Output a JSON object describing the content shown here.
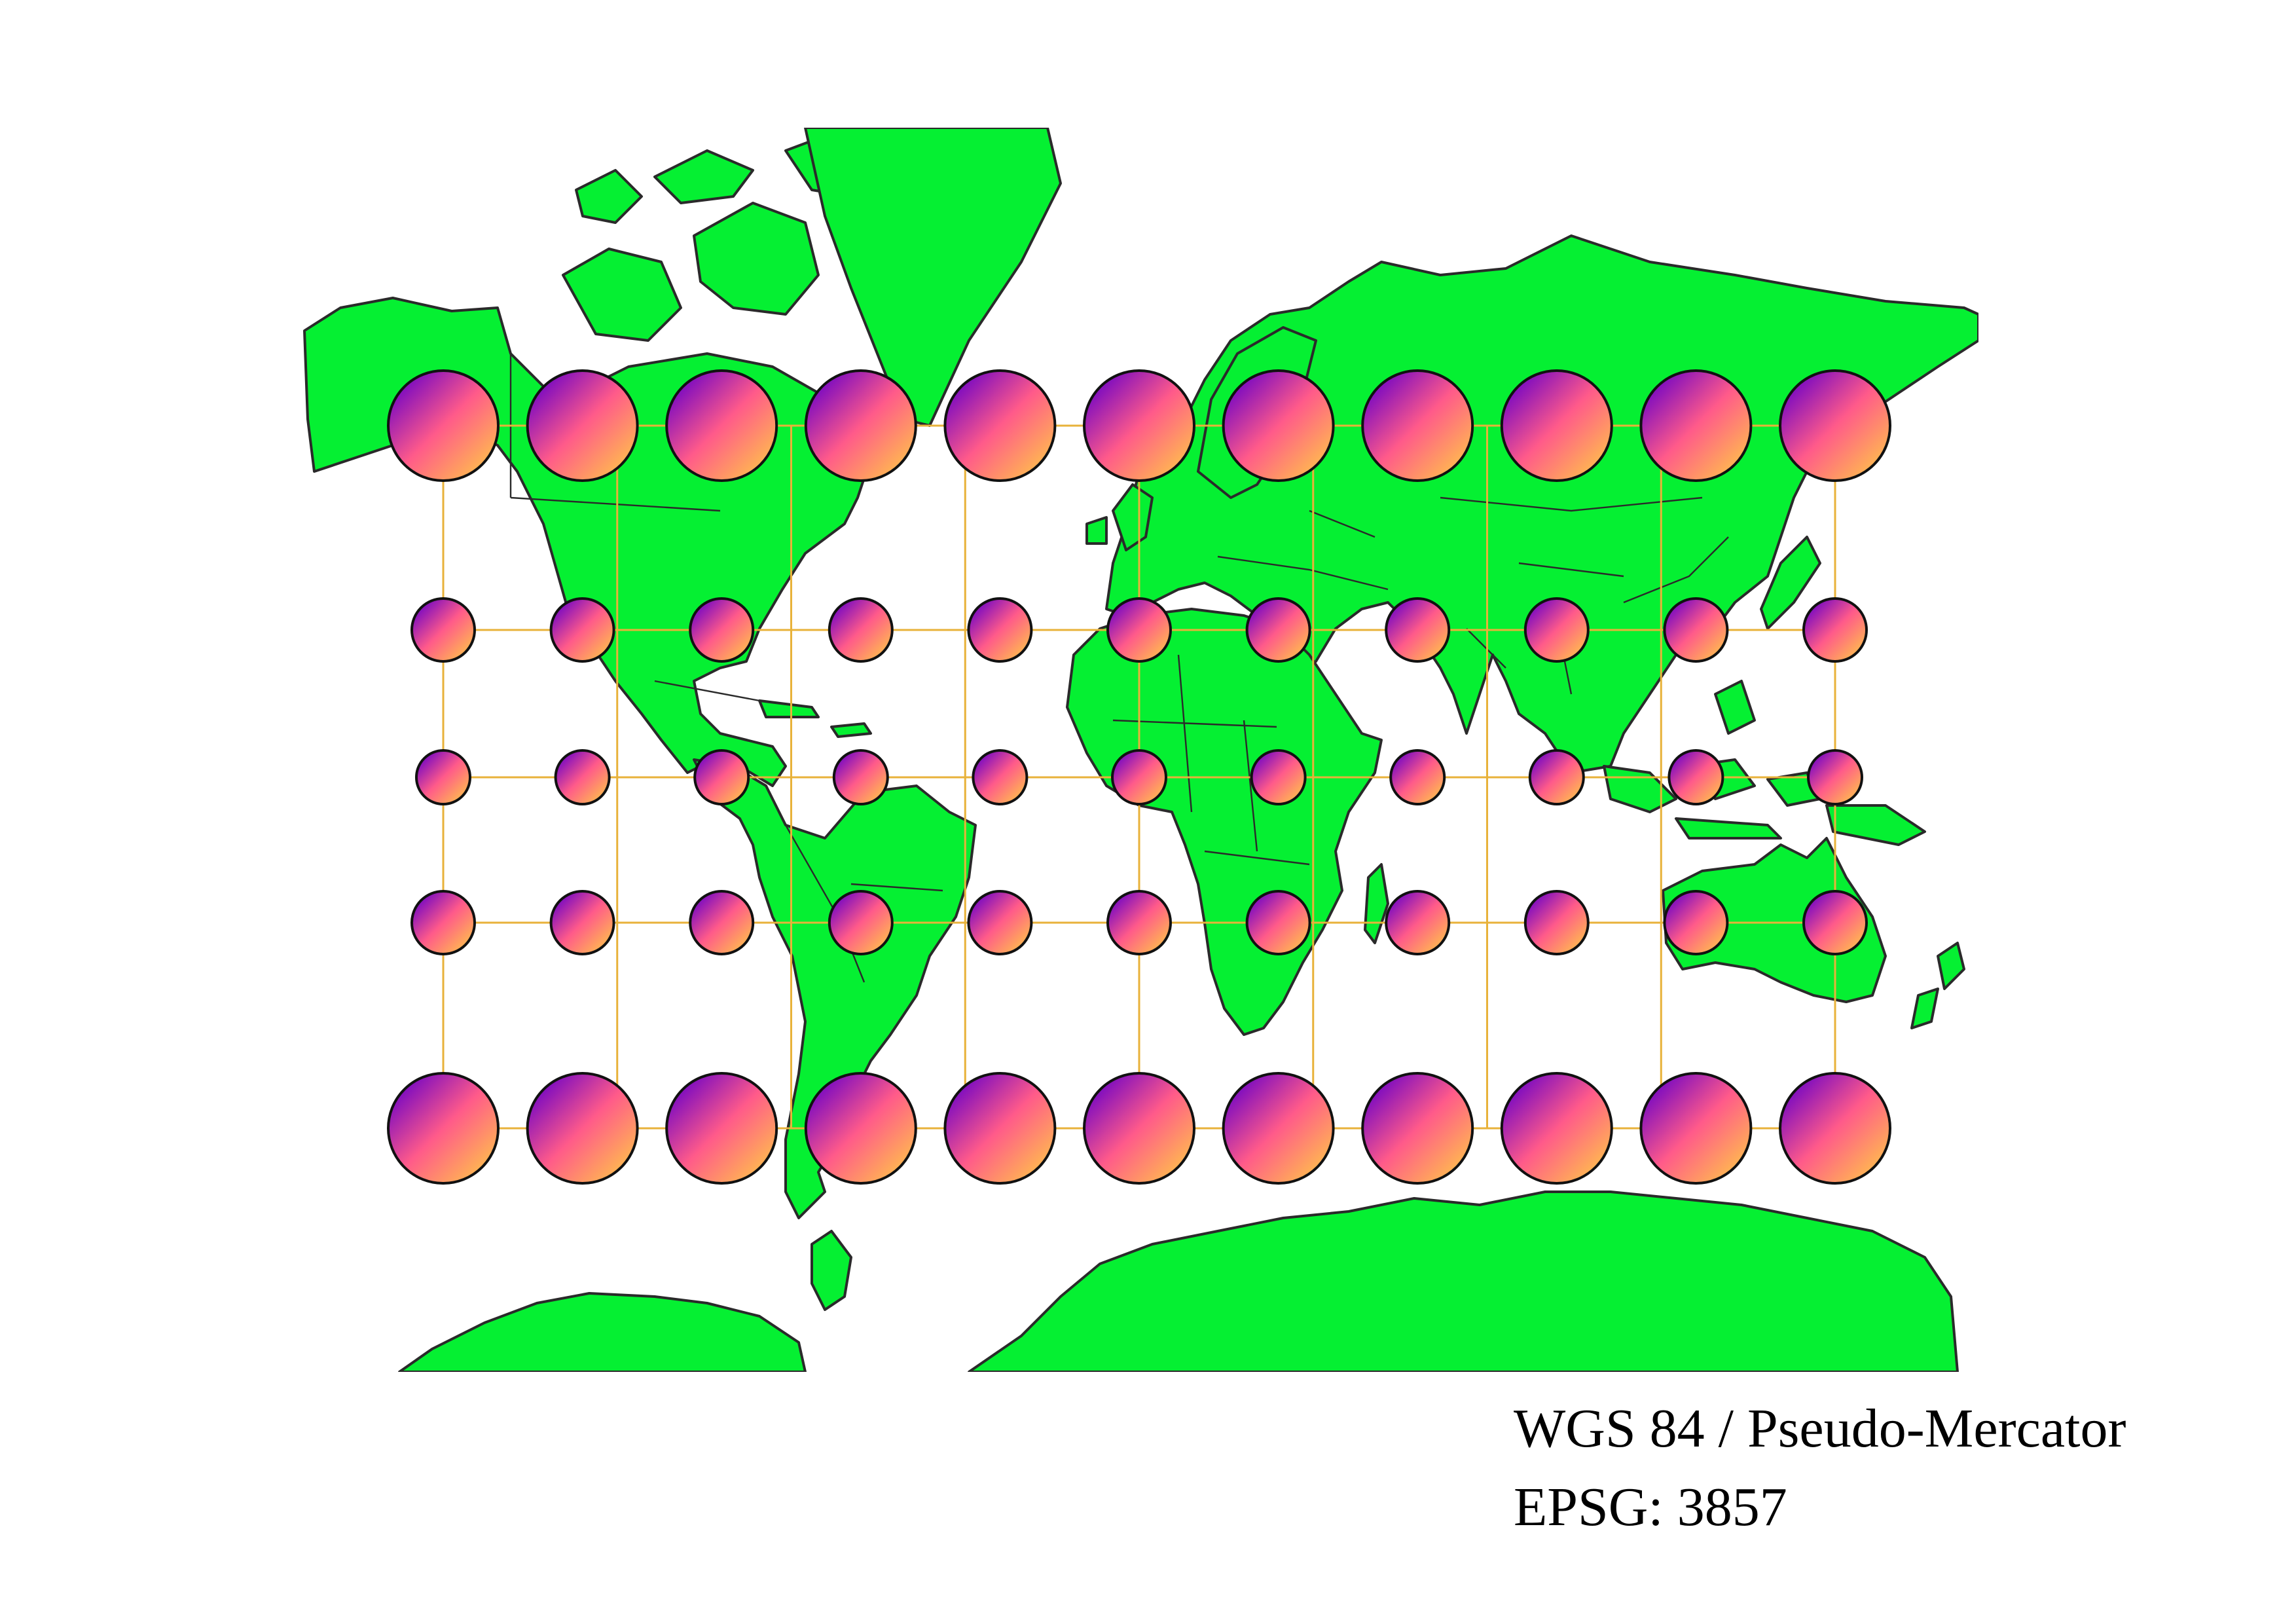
{
  "map": {
    "projection_name": "WGS 84 / Pseudo-Mercator",
    "epsg_label": "EPSG: 3857",
    "land_color": "#05f032",
    "coastline_color": "#2a2a2a",
    "graticule_color": "#e8b23a",
    "indicatrix_gradient": [
      "#6a00c8",
      "#ff5a8a",
      "#ffc24a"
    ],
    "graticule_longitudes": [
      -160,
      -120,
      -80,
      -40,
      0,
      40,
      80,
      120,
      160
    ],
    "graticule_latitudes": [
      -60,
      -30,
      0,
      30,
      60
    ],
    "indicatrix_longitudes": [
      -160,
      -128,
      -96,
      -64,
      -32,
      0,
      32,
      64,
      96,
      128,
      160
    ],
    "indicatrix_latitudes": [
      60,
      30,
      0,
      -30,
      -60
    ],
    "symbol": "Tissot's indicatrix (circles of equal ground radius)"
  }
}
